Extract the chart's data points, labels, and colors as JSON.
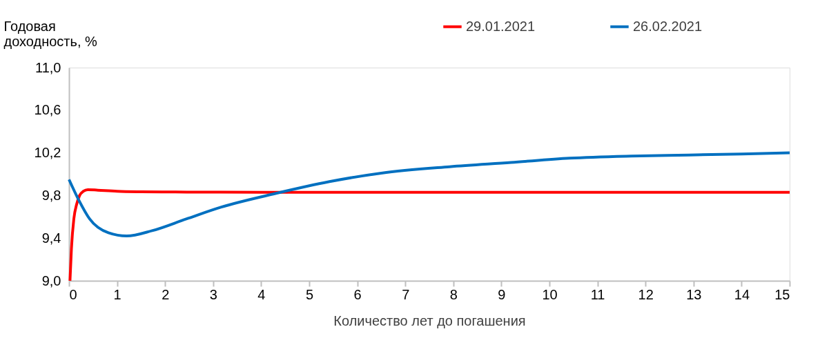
{
  "chart_data": {
    "type": "line",
    "ylabel": "Годовая доходность, %",
    "xlabel": "Количество лет до погашения",
    "xlim": [
      0,
      15
    ],
    "xticks": [
      0,
      1,
      2,
      3,
      4,
      5,
      6,
      7,
      8,
      9,
      10,
      11,
      12,
      13,
      14,
      15
    ],
    "ylim": [
      9.0,
      11.0
    ],
    "yticks": [
      {
        "value": 9.0,
        "label": "9,0"
      },
      {
        "value": 9.4,
        "label": "9,4"
      },
      {
        "value": 9.8,
        "label": "9,8"
      },
      {
        "value": 10.2,
        "label": "10,2"
      },
      {
        "value": 10.6,
        "label": "10,6"
      },
      {
        "value": 11.0,
        "label": "11,0"
      }
    ],
    "grid": false,
    "legend": "top right",
    "marker": "none",
    "line_style": "solid",
    "series": [
      {
        "name": "29.01.2021",
        "color": "#ff0000",
        "x": [
          0.02,
          0.05,
          0.1,
          0.16,
          0.22,
          0.3,
          0.39,
          0.6,
          1.0,
          1.5,
          2.0,
          2.7,
          4,
          6,
          8,
          10,
          12,
          15
        ],
        "values": [
          9.0,
          9.3,
          9.58,
          9.72,
          9.8,
          9.84,
          9.855,
          9.85,
          9.84,
          9.835,
          9.833,
          9.832,
          9.83,
          9.83,
          9.83,
          9.83,
          9.83,
          9.83
        ]
      },
      {
        "name": "26.02.2021",
        "color": "#0070c0",
        "x": [
          0,
          0.2,
          0.43,
          0.82,
          1.2,
          1.73,
          2.44,
          3.16,
          4.31,
          5.42,
          6.5,
          7.92,
          9.2,
          10.42,
          11.7,
          12.9,
          14,
          15
        ],
        "values": [
          9.95,
          9.76,
          9.58,
          9.45,
          9.42,
          9.47,
          9.58,
          9.69,
          9.82,
          9.93,
          10.01,
          10.07,
          10.11,
          10.15,
          10.17,
          10.18,
          10.19,
          10.2
        ]
      }
    ]
  }
}
